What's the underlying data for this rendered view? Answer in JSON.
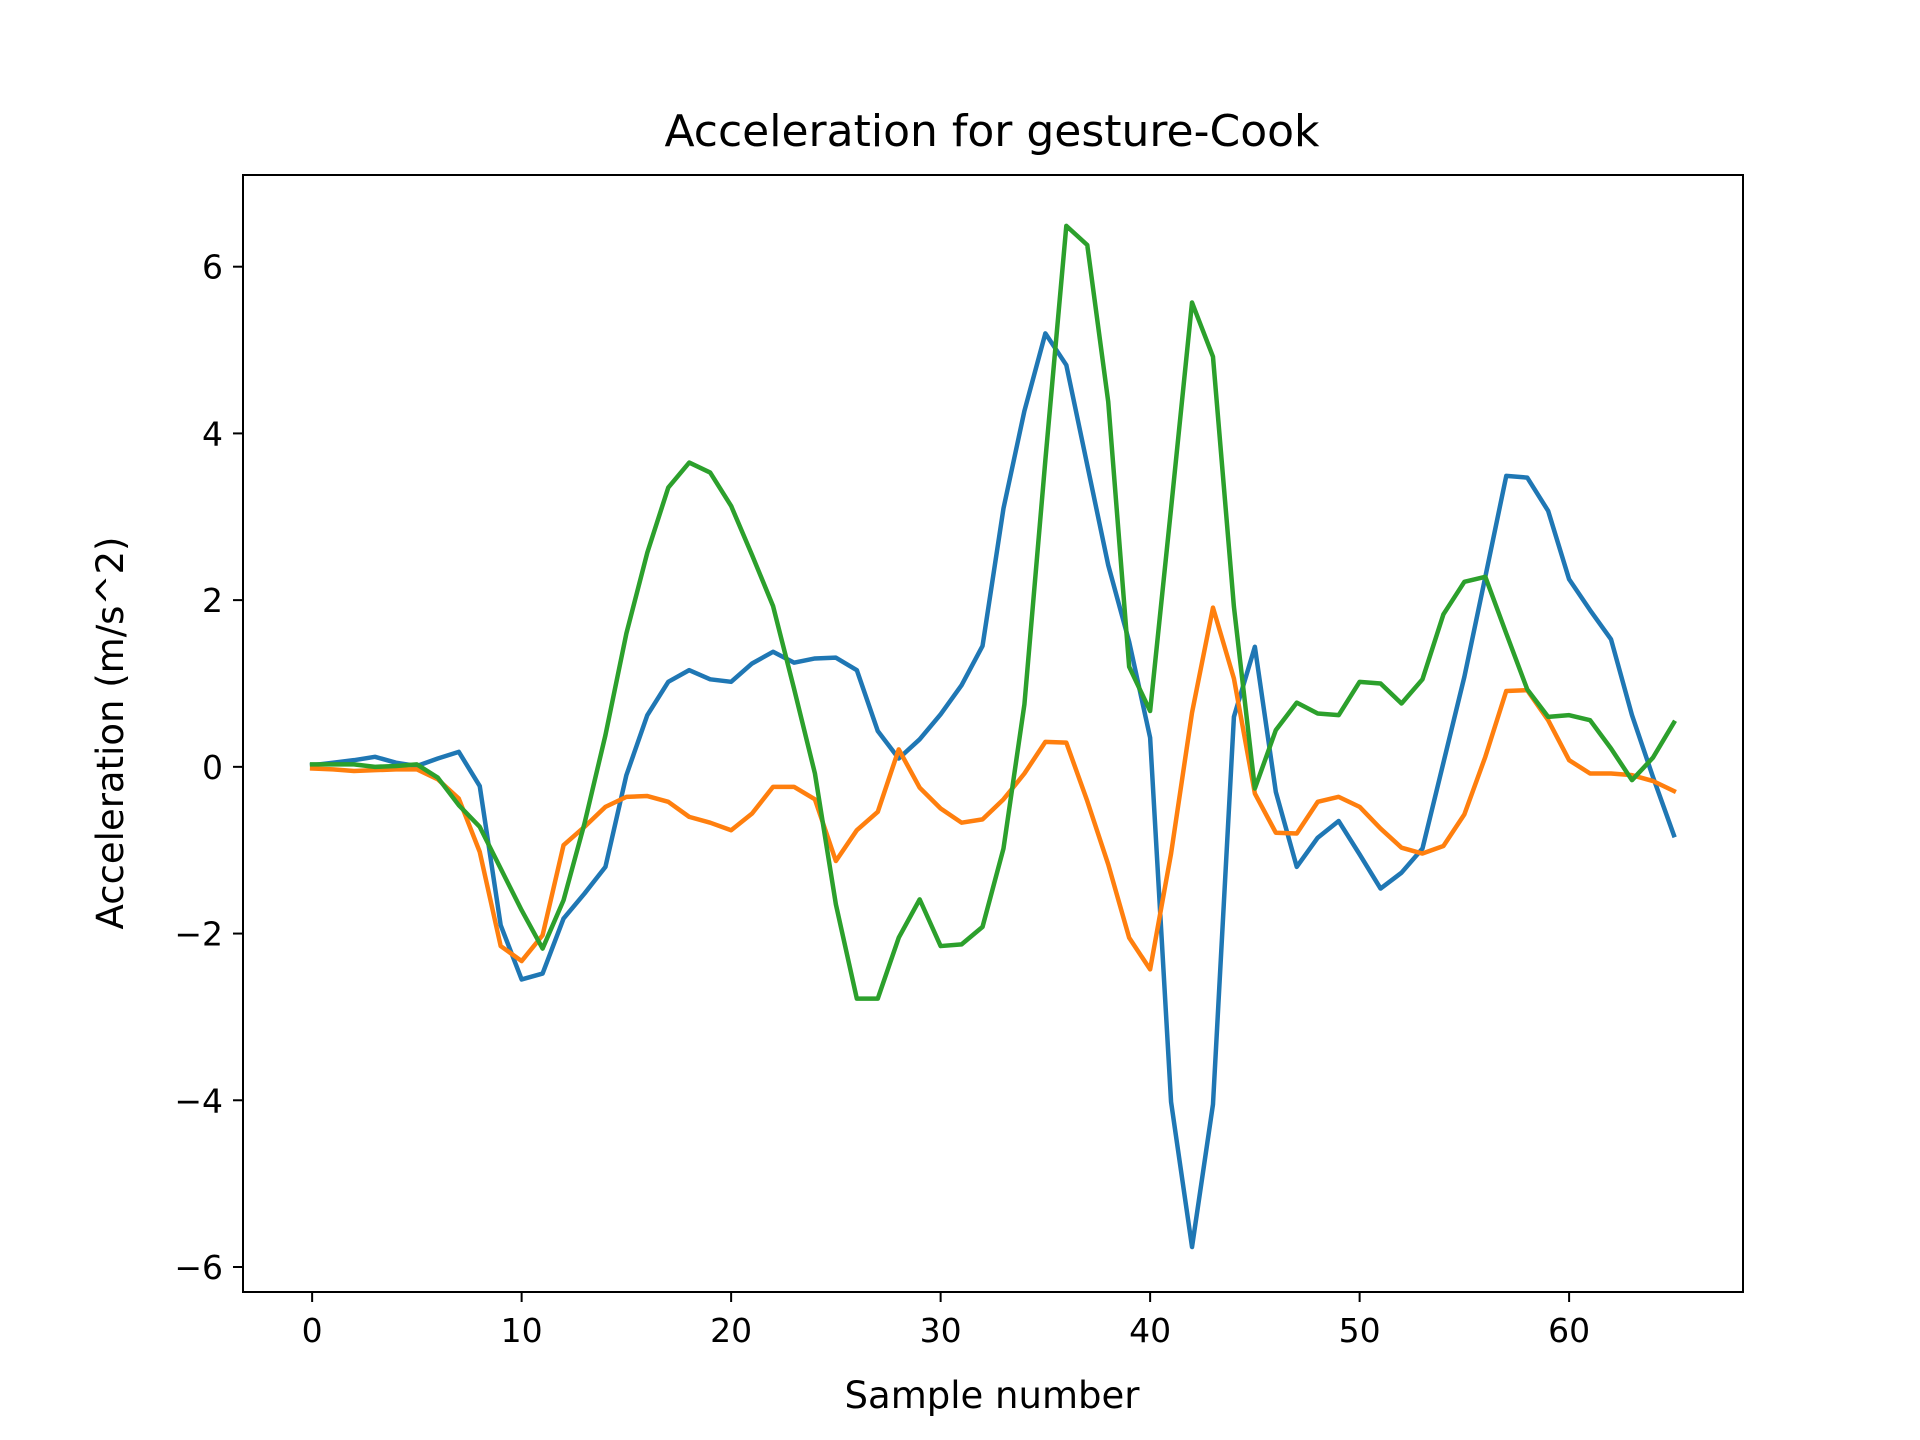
{
  "chart_data": {
    "type": "line",
    "title": "Acceleration for gesture-Cook",
    "xlabel": "Sample number",
    "ylabel": "Acceleration (m/s^2)",
    "xlim": [
      -3.3,
      68.3
    ],
    "ylim": [
      -6.3,
      7.1
    ],
    "xticks": [
      0,
      10,
      20,
      30,
      40,
      50,
      60
    ],
    "yticks": [
      -6,
      -4,
      -2,
      0,
      2,
      4,
      6
    ],
    "grid": false,
    "legend": "none",
    "x": [
      0,
      1,
      2,
      3,
      4,
      5,
      6,
      7,
      8,
      9,
      10,
      11,
      12,
      13,
      14,
      15,
      16,
      17,
      18,
      19,
      20,
      21,
      22,
      23,
      24,
      25,
      26,
      27,
      28,
      29,
      30,
      31,
      32,
      33,
      34,
      35,
      36,
      37,
      38,
      39,
      40,
      41,
      42,
      43,
      44,
      45,
      46,
      47,
      48,
      49,
      50,
      51,
      52,
      53,
      54,
      55,
      56,
      57,
      58,
      59,
      60,
      61,
      62,
      63,
      64,
      65
    ],
    "series": [
      {
        "color": "#1f77b4",
        "values": [
          0.02,
          0.05,
          0.08,
          0.12,
          0.05,
          0.01,
          0.1,
          0.18,
          -0.23,
          -1.9,
          -2.55,
          -2.48,
          -1.82,
          -1.52,
          -1.2,
          -0.1,
          0.62,
          1.02,
          1.16,
          1.05,
          1.02,
          1.24,
          1.38,
          1.25,
          1.3,
          1.31,
          1.16,
          0.43,
          0.1,
          0.33,
          0.63,
          0.98,
          1.45,
          3.1,
          4.27,
          5.2,
          4.82,
          3.62,
          2.42,
          1.5,
          0.35,
          -4.02,
          -5.76,
          -4.05,
          0.6,
          1.44,
          -0.3,
          -1.2,
          -0.85,
          -0.65,
          -1.05,
          -1.46,
          -1.27,
          -0.98,
          0.05,
          1.08,
          2.28,
          3.49,
          3.47,
          3.07,
          2.25,
          1.88,
          1.53,
          0.62,
          -0.12,
          -0.82
        ]
      },
      {
        "color": "#ff7f0e",
        "values": [
          -0.02,
          -0.03,
          -0.05,
          -0.04,
          -0.03,
          -0.03,
          -0.15,
          -0.38,
          -1.02,
          -2.15,
          -2.33,
          -2.02,
          -0.94,
          -0.72,
          -0.48,
          -0.36,
          -0.35,
          -0.42,
          -0.6,
          -0.67,
          -0.76,
          -0.56,
          -0.24,
          -0.24,
          -0.39,
          -1.13,
          -0.76,
          -0.54,
          0.21,
          -0.25,
          -0.5,
          -0.67,
          -0.63,
          -0.39,
          -0.08,
          0.3,
          0.29,
          -0.41,
          -1.17,
          -2.05,
          -2.43,
          -1.04,
          0.65,
          1.91,
          1.06,
          -0.32,
          -0.79,
          -0.8,
          -0.42,
          -0.36,
          -0.48,
          -0.74,
          -0.97,
          -1.04,
          -0.95,
          -0.57,
          0.12,
          0.91,
          0.92,
          0.56,
          0.08,
          -0.08,
          -0.08,
          -0.1,
          -0.17,
          -0.29
        ]
      },
      {
        "color": "#2ca02c",
        "values": [
          0.03,
          0.03,
          0.03,
          0.0,
          0.01,
          0.03,
          -0.13,
          -0.46,
          -0.72,
          -1.22,
          -1.72,
          -2.18,
          -1.6,
          -0.68,
          0.38,
          1.6,
          2.57,
          3.35,
          3.65,
          3.53,
          3.13,
          2.54,
          1.93,
          0.94,
          -0.08,
          -1.65,
          -2.78,
          -2.78,
          -2.05,
          -1.59,
          -2.15,
          -2.13,
          -1.92,
          -0.98,
          0.75,
          3.68,
          6.49,
          6.26,
          4.38,
          1.2,
          0.67,
          3.1,
          5.57,
          4.92,
          1.92,
          -0.26,
          0.44,
          0.77,
          0.64,
          0.62,
          1.02,
          1.0,
          0.76,
          1.05,
          1.83,
          2.22,
          2.28,
          1.6,
          0.93,
          0.6,
          0.62,
          0.56,
          0.22,
          -0.16,
          0.11,
          0.53
        ]
      }
    ]
  }
}
